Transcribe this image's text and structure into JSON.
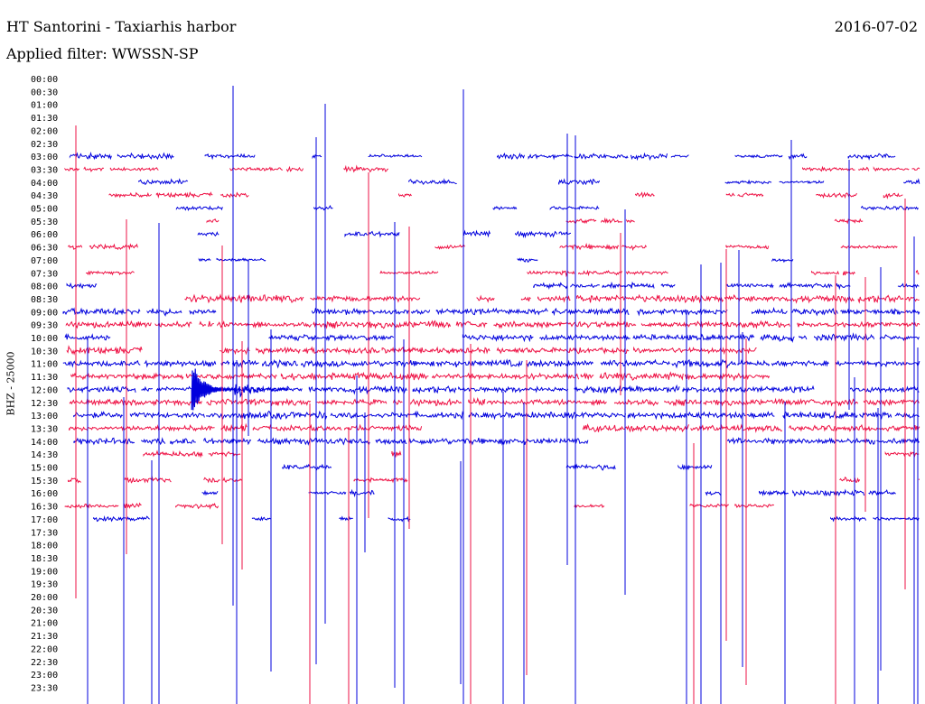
{
  "header": {
    "title": "HT Santorini - Taxiarhis harbor",
    "date": "2016-07-02",
    "filter": "Applied filter: WWSSN-SP"
  },
  "chart_data": {
    "type": "line",
    "title": "HT Santorini - Taxiarhis harbor",
    "date": "2016-07-02",
    "filter": "WWSSN-SP",
    "ylabel": "BHZ - 25000",
    "rows": [
      "00:00",
      "00:30",
      "01:00",
      "01:30",
      "02:00",
      "02:30",
      "03:00",
      "03:30",
      "04:00",
      "04:30",
      "05:00",
      "05:30",
      "06:00",
      "06:30",
      "07:00",
      "07:30",
      "08:00",
      "08:30",
      "09:00",
      "09:30",
      "10:00",
      "10:30",
      "11:00",
      "11:30",
      "12:00",
      "12:30",
      "13:00",
      "13:30",
      "14:00",
      "14:30",
      "15:00",
      "15:30",
      "16:00",
      "16:30",
      "17:00",
      "17:30",
      "18:00",
      "18:30",
      "19:00",
      "19:30",
      "20:00",
      "20:30",
      "21:00",
      "21:30",
      "22:00",
      "22:30",
      "23:00",
      "23:30"
    ],
    "rows_with_signal": {
      "first": "03:00",
      "last": "17:00"
    },
    "trace_colors": [
      "#0000dd",
      "#ee1144"
    ],
    "major_event": {
      "row": "12:00",
      "minute_offset": 4.5
    },
    "grid": false
  }
}
